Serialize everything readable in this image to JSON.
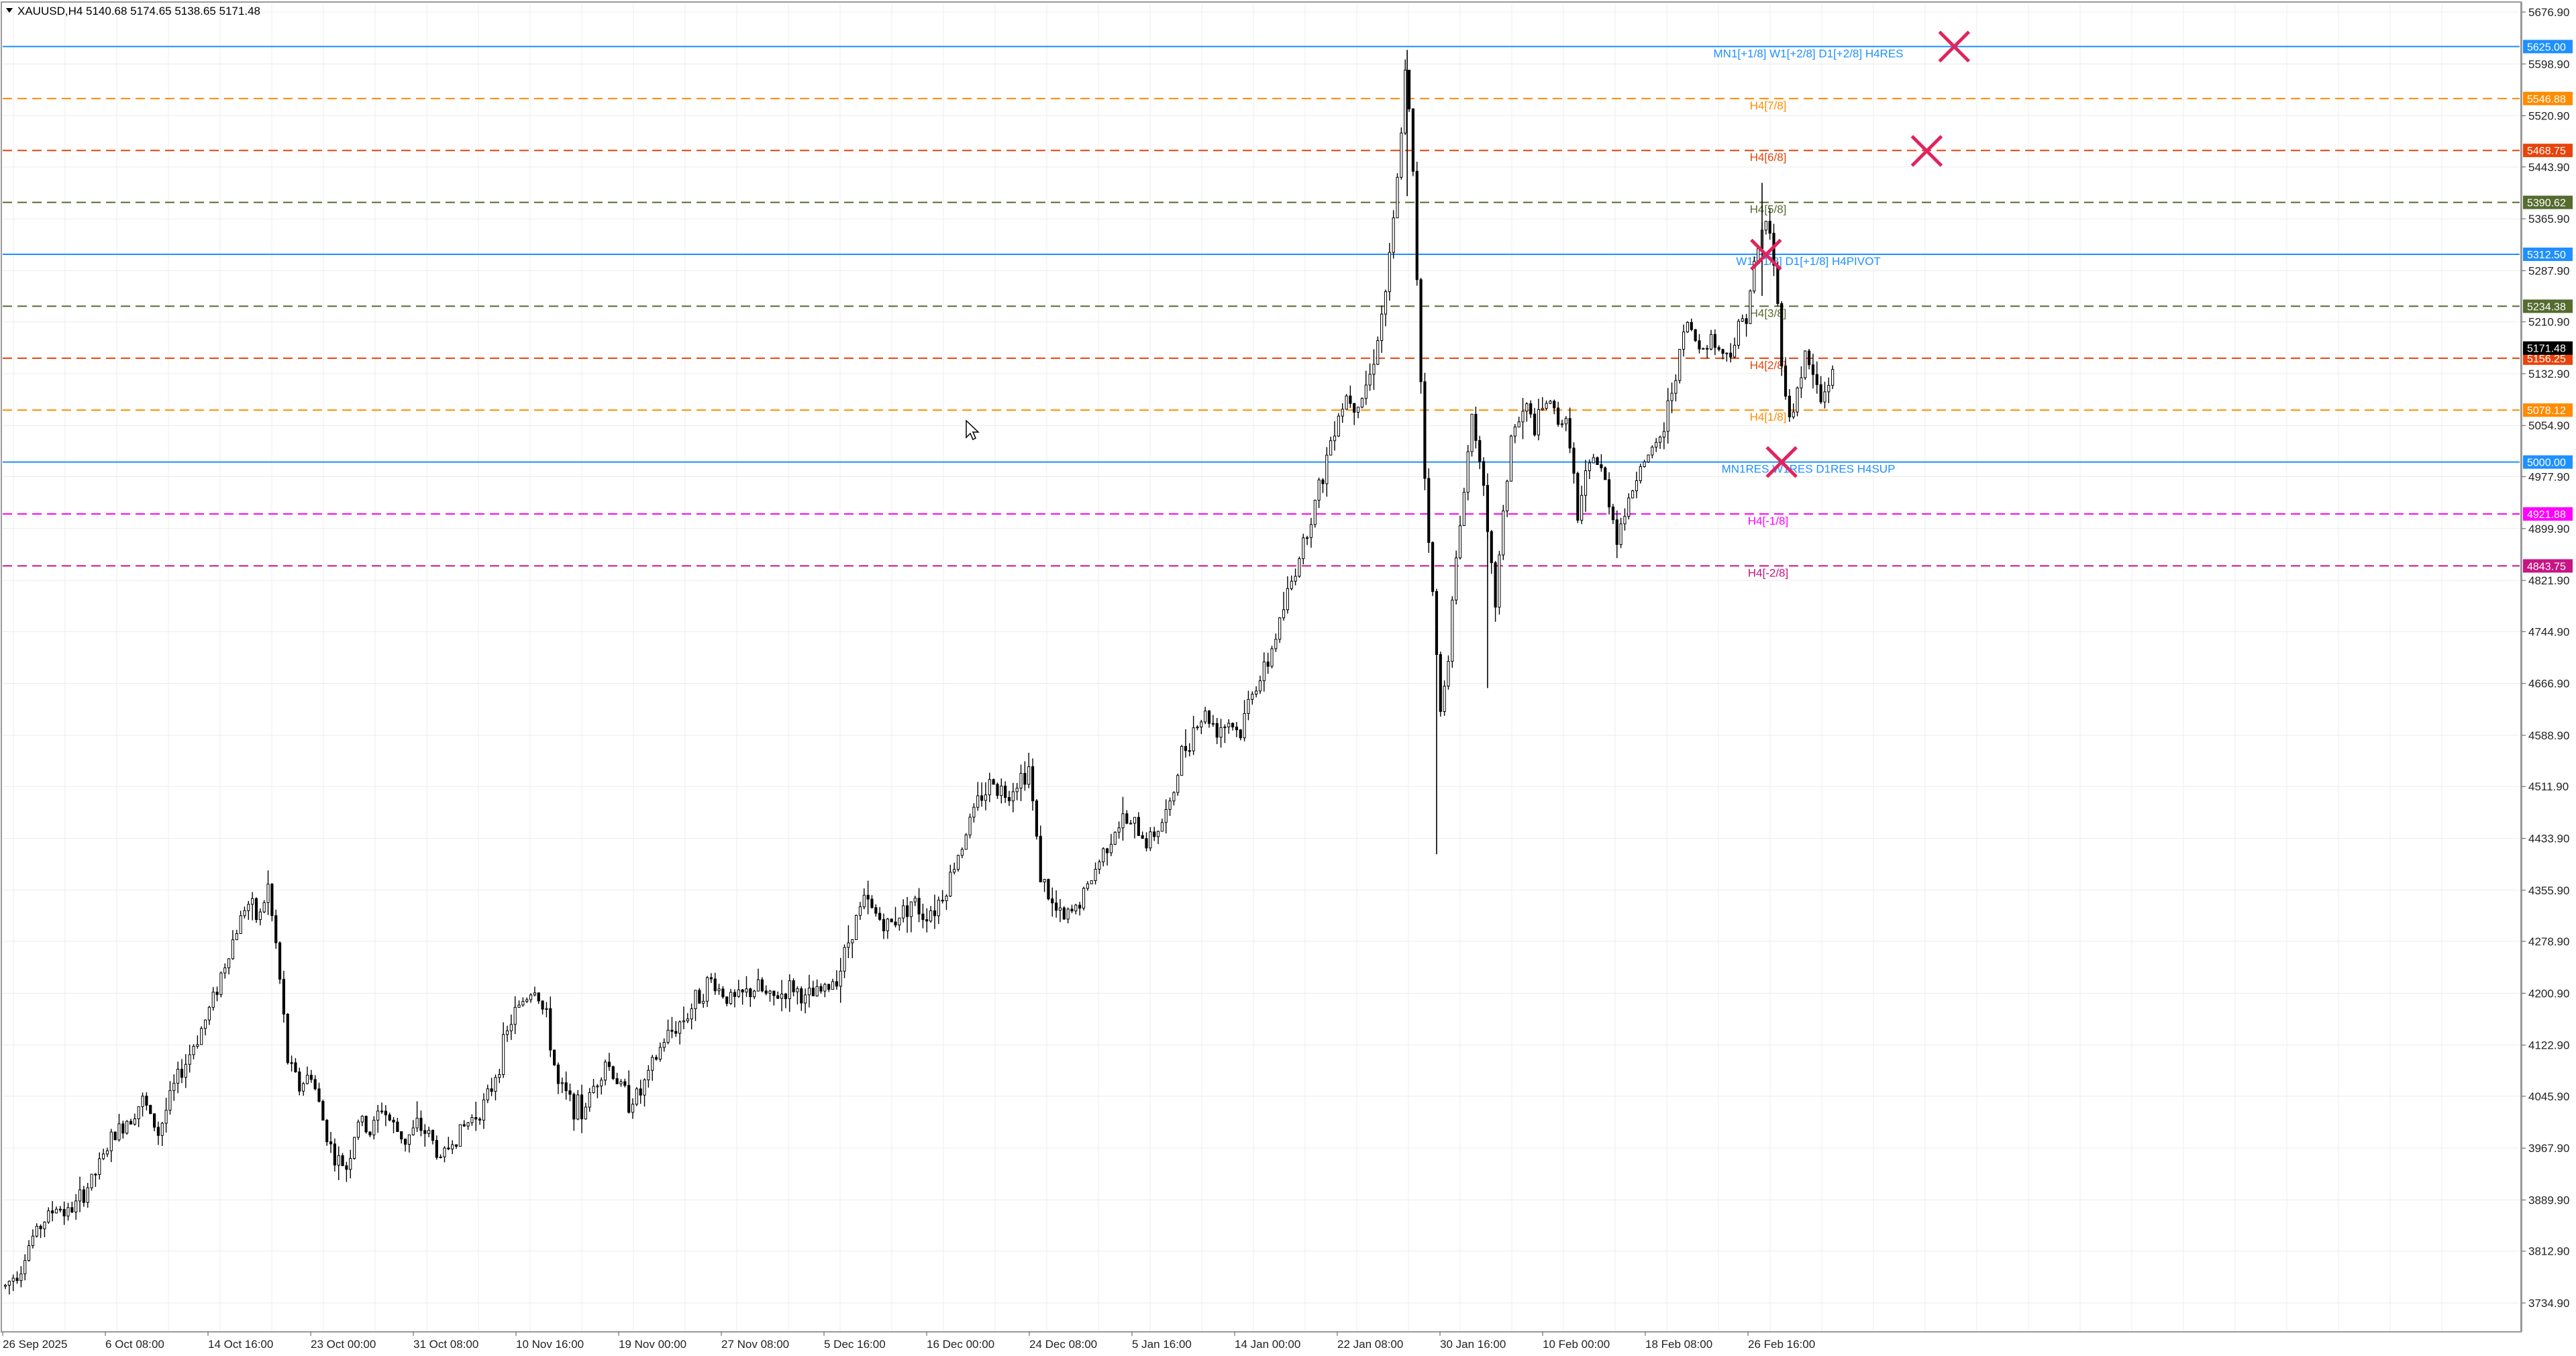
{
  "header": {
    "symbol": "XAUUSD,H4",
    "ohlc": "5140.68 5174.65 5138.65 5171.48"
  },
  "colors": {
    "background": "#ffffff",
    "grid": "#e6e6e6",
    "candle": "#000000",
    "axis_text": "#222222"
  },
  "chart_data": {
    "type": "candlestick",
    "symbol": "XAUUSD",
    "timeframe": "H4",
    "current_price": 5171.48,
    "ylim": [
      3700,
      5700
    ],
    "y_ticks": [
      "5676.90",
      "5598.90",
      "5520.90",
      "5443.90",
      "5365.90",
      "5287.90",
      "5210.90",
      "5132.90",
      "5054.90",
      "4977.90",
      "4899.90",
      "4821.90",
      "4744.90",
      "4666.90",
      "4588.90",
      "4511.90",
      "4433.90",
      "4355.90",
      "4278.90",
      "4200.90",
      "4122.90",
      "4045.90",
      "3967.90",
      "3889.90",
      "3812.90",
      "3734.90"
    ],
    "x_labels": [
      "26 Sep 2025",
      "6 Oct 08:00",
      "14 Oct 16:00",
      "23 Oct 00:00",
      "31 Oct 08:00",
      "10 Nov 16:00",
      "19 Nov 00:00",
      "27 Nov 08:00",
      "5 Dec 16:00",
      "16 Dec 00:00",
      "24 Dec 08:00",
      "5 Jan 16:00",
      "14 Jan 00:00",
      "22 Jan 08:00",
      "30 Jan 16:00",
      "10 Feb 00:00",
      "18 Feb 08:00",
      "26 Feb 16:00"
    ],
    "price_path": [
      [
        0.0,
        3760
      ],
      [
        0.8,
        3790
      ],
      [
        1.3,
        3830
      ],
      [
        2.0,
        3860
      ],
      [
        2.6,
        3880
      ],
      [
        3.2,
        3870
      ],
      [
        3.8,
        3890
      ],
      [
        4.6,
        3930
      ],
      [
        5.4,
        3980
      ],
      [
        6.2,
        4010
      ],
      [
        7.0,
        4040
      ],
      [
        7.8,
        3990
      ],
      [
        8.6,
        4060
      ],
      [
        9.4,
        4110
      ],
      [
        10.2,
        4160
      ],
      [
        10.9,
        4220
      ],
      [
        11.6,
        4280
      ],
      [
        12.3,
        4340
      ],
      [
        12.9,
        4310
      ],
      [
        13.4,
        4360
      ],
      [
        13.9,
        4250
      ],
      [
        14.4,
        4100
      ],
      [
        15.0,
        4060
      ],
      [
        15.6,
        4080
      ],
      [
        16.2,
        4010
      ],
      [
        16.8,
        3950
      ],
      [
        17.4,
        3940
      ],
      [
        18.0,
        4010
      ],
      [
        18.6,
        3990
      ],
      [
        19.2,
        4030
      ],
      [
        19.8,
        4000
      ],
      [
        20.4,
        3980
      ],
      [
        21.0,
        4000
      ],
      [
        21.6,
        3990
      ],
      [
        22.2,
        3950
      ],
      [
        22.8,
        3980
      ],
      [
        23.4,
        4000
      ],
      [
        24.0,
        4020
      ],
      [
        24.6,
        4040
      ],
      [
        25.2,
        4100
      ],
      [
        25.8,
        4160
      ],
      [
        26.4,
        4190
      ],
      [
        27.0,
        4210
      ],
      [
        27.6,
        4160
      ],
      [
        28.2,
        4060
      ],
      [
        28.8,
        4040
      ],
      [
        29.4,
        4020
      ],
      [
        30.0,
        4060
      ],
      [
        30.6,
        4100
      ],
      [
        31.2,
        4070
      ],
      [
        31.8,
        4040
      ],
      [
        32.4,
        4050
      ],
      [
        33.0,
        4090
      ],
      [
        33.6,
        4130
      ],
      [
        34.2,
        4150
      ],
      [
        34.8,
        4170
      ],
      [
        35.4,
        4200
      ],
      [
        36.0,
        4220
      ],
      [
        36.6,
        4200
      ],
      [
        37.2,
        4190
      ],
      [
        37.8,
        4200
      ],
      [
        38.4,
        4210
      ],
      [
        39.0,
        4190
      ],
      [
        39.6,
        4200
      ],
      [
        40.2,
        4210
      ],
      [
        40.8,
        4190
      ],
      [
        41.4,
        4200
      ],
      [
        42.0,
        4210
      ],
      [
        42.6,
        4240
      ],
      [
        43.2,
        4300
      ],
      [
        43.8,
        4340
      ],
      [
        44.4,
        4320
      ],
      [
        45.0,
        4300
      ],
      [
        45.6,
        4320
      ],
      [
        46.2,
        4340
      ],
      [
        46.8,
        4320
      ],
      [
        47.4,
        4330
      ],
      [
        48.0,
        4360
      ],
      [
        48.6,
        4410
      ],
      [
        49.2,
        4460
      ],
      [
        49.8,
        4500
      ],
      [
        50.4,
        4520
      ],
      [
        51.0,
        4500
      ],
      [
        51.6,
        4520
      ],
      [
        52.2,
        4540
      ],
      [
        52.8,
        4380
      ],
      [
        53.4,
        4330
      ],
      [
        54.0,
        4310
      ],
      [
        54.6,
        4330
      ],
      [
        55.2,
        4360
      ],
      [
        55.8,
        4400
      ],
      [
        56.4,
        4440
      ],
      [
        57.0,
        4460
      ],
      [
        57.6,
        4450
      ],
      [
        58.2,
        4430
      ],
      [
        58.8,
        4450
      ],
      [
        59.4,
        4480
      ],
      [
        60.0,
        4560
      ],
      [
        60.6,
        4600
      ],
      [
        61.2,
        4620
      ],
      [
        61.8,
        4600
      ],
      [
        62.4,
        4610
      ],
      [
        63.0,
        4590
      ],
      [
        63.6,
        4660
      ],
      [
        64.2,
        4680
      ],
      [
        64.8,
        4740
      ],
      [
        65.4,
        4800
      ],
      [
        66.0,
        4860
      ],
      [
        66.6,
        4920
      ],
      [
        67.2,
        4980
      ],
      [
        67.8,
        5060
      ],
      [
        68.4,
        5100
      ],
      [
        69.0,
        5090
      ],
      [
        69.6,
        5130
      ],
      [
        70.2,
        5220
      ],
      [
        70.6,
        5300
      ],
      [
        71.0,
        5420
      ],
      [
        71.4,
        5580
      ],
      [
        71.7,
        5500
      ],
      [
        72.0,
        5280
      ],
      [
        72.4,
        4980
      ],
      [
        72.8,
        4800
      ],
      [
        73.2,
        4620
      ],
      [
        73.6,
        4720
      ],
      [
        74.0,
        4850
      ],
      [
        74.4,
        4960
      ],
      [
        74.8,
        5070
      ],
      [
        75.2,
        5020
      ],
      [
        75.6,
        4880
      ],
      [
        76.0,
        4790
      ],
      [
        76.4,
        4920
      ],
      [
        76.8,
        5040
      ],
      [
        77.2,
        5060
      ],
      [
        77.6,
        5080
      ],
      [
        78.0,
        5050
      ],
      [
        78.6,
        5090
      ],
      [
        79.2,
        5070
      ],
      [
        79.8,
        5040
      ],
      [
        80.2,
        4910
      ],
      [
        80.6,
        4970
      ],
      [
        81.0,
        5010
      ],
      [
        81.6,
        4970
      ],
      [
        82.2,
        4890
      ],
      [
        82.8,
        4940
      ],
      [
        83.4,
        5000
      ],
      [
        84.0,
        5010
      ],
      [
        84.6,
        5050
      ],
      [
        85.2,
        5140
      ],
      [
        85.8,
        5210
      ],
      [
        86.4,
        5170
      ],
      [
        87.0,
        5190
      ],
      [
        87.6,
        5160
      ],
      [
        88.2,
        5180
      ],
      [
        88.8,
        5230
      ],
      [
        89.4,
        5320
      ],
      [
        89.8,
        5370
      ],
      [
        90.2,
        5300
      ],
      [
        90.6,
        5160
      ],
      [
        91.0,
        5060
      ],
      [
        91.4,
        5110
      ],
      [
        91.8,
        5160
      ],
      [
        92.2,
        5130
      ],
      [
        92.6,
        5090
      ],
      [
        93.0,
        5120
      ],
      [
        93.4,
        5171
      ]
    ],
    "levels": [
      {
        "price": 5625.0,
        "line_label": "MN1[+1/8] W1[+2/8] D1[+2/8] H4RES",
        "tag_text": "5625.00",
        "color": "#1e90ff",
        "style": "solid"
      },
      {
        "price": 5546.88,
        "line_label": "H4[7/8]",
        "tag_text": "5546.88",
        "color": "#ff8c00",
        "style": "dashed"
      },
      {
        "price": 5468.75,
        "line_label": "H4[6/8]",
        "tag_text": "5468.75",
        "color": "#e8430a",
        "style": "dashed"
      },
      {
        "price": 5390.62,
        "line_label": "H4[5/8]",
        "tag_text": "5390.62",
        "color": "#556b2f",
        "style": "dashed"
      },
      {
        "price": 5312.5,
        "line_label": "W1[+1/8] D1[+1/8] H4PIVOT",
        "tag_text": "5312.50",
        "color": "#1e90ff",
        "style": "solid"
      },
      {
        "price": 5234.38,
        "line_label": "H4[3/8]",
        "tag_text": "5234.38",
        "color": "#556b2f",
        "style": "dashed"
      },
      {
        "price": 5156.25,
        "line_label": "H4[2/8]",
        "tag_text": "5156.25",
        "color": "#e8430a",
        "style": "dashed"
      },
      {
        "price": 5078.12,
        "line_label": "H4[1/8]",
        "tag_text": "5078.12",
        "color": "#ff8c00",
        "style": "dashed"
      },
      {
        "price": 5000.0,
        "line_label": "MN1RES W1RES D1RES H4SUP",
        "tag_text": "5000.00",
        "color": "#1e90ff",
        "style": "solid"
      },
      {
        "price": 4921.88,
        "line_label": "H4[-1/8]",
        "tag_text": "4921.88",
        "color": "#ff00ff",
        "style": "dashed"
      },
      {
        "price": 4843.75,
        "line_label": "H4[-2/8]",
        "tag_text": "4843.75",
        "color": "#c71585",
        "style": "dashed"
      }
    ],
    "current_price_tag": {
      "price": 5171.48,
      "tag_text": "5171.48",
      "color": "#000000"
    },
    "markers": [
      {
        "type": "cross",
        "time_index": 99.4,
        "price": 5625,
        "color": "#e0245e"
      },
      {
        "type": "cross",
        "time_index": 98.0,
        "price": 5468,
        "color": "#e0245e"
      },
      {
        "type": "cross",
        "time_index": 89.8,
        "price": 5312,
        "color": "#e0245e"
      },
      {
        "type": "cross",
        "time_index": 90.6,
        "price": 5000,
        "color": "#e0245e"
      }
    ]
  }
}
